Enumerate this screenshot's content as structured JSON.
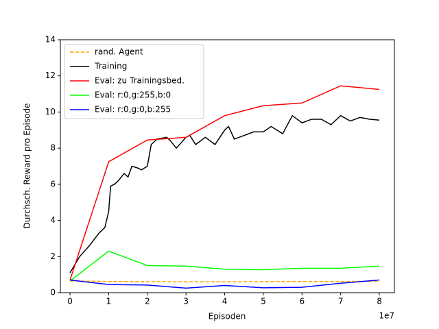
{
  "chart_data": {
    "type": "line",
    "xlabel": "Episoden",
    "ylabel": "Durchsch. Reward pro Episode",
    "x_offset_label": "1e7",
    "xlim": [
      -0.25,
      8.39
    ],
    "xticks": [
      0,
      1,
      2,
      3,
      4,
      5,
      6,
      7,
      8
    ],
    "ylim": [
      0,
      14
    ],
    "yticks": [
      0,
      2,
      4,
      6,
      8,
      10,
      12,
      14
    ],
    "legend": "upper left",
    "series": [
      {
        "name": "rand. Agent",
        "color": "#ffa500",
        "dashed": true,
        "x": [
          0,
          1,
          2,
          3,
          4,
          5,
          6,
          7,
          8
        ],
        "values": [
          0.65,
          0.62,
          0.61,
          0.6,
          0.6,
          0.61,
          0.62,
          0.62,
          0.63
        ]
      },
      {
        "name": "Training",
        "color": "#000000",
        "x": [
          0,
          0.25,
          0.5,
          0.75,
          0.9,
          1.0,
          1.05,
          1.15,
          1.25,
          1.4,
          1.5,
          1.6,
          1.75,
          1.85,
          2.0,
          2.1,
          2.25,
          2.5,
          2.6,
          2.75,
          3.0,
          3.1,
          3.25,
          3.5,
          3.75,
          4.0,
          4.1,
          4.25,
          4.5,
          4.75,
          5.0,
          5.2,
          5.5,
          5.75,
          6.0,
          6.25,
          6.5,
          6.75,
          7.0,
          7.25,
          7.5,
          7.75,
          8.0
        ],
        "values": [
          1.1,
          2.0,
          2.6,
          3.3,
          3.6,
          4.5,
          5.9,
          6.0,
          6.2,
          6.6,
          6.4,
          7.0,
          6.9,
          6.8,
          7.0,
          8.2,
          8.5,
          8.6,
          8.4,
          8.0,
          8.6,
          8.7,
          8.2,
          8.6,
          8.2,
          9.0,
          9.2,
          8.5,
          8.7,
          8.9,
          8.9,
          9.2,
          8.8,
          9.8,
          9.4,
          9.6,
          9.6,
          9.3,
          9.8,
          9.5,
          9.7,
          9.6,
          9.55
        ]
      },
      {
        "name": "Eval: zu Trainingsbed.",
        "color": "#ff0000",
        "x": [
          0,
          1,
          2,
          3,
          4,
          5,
          6,
          7,
          8
        ],
        "values": [
          0.7,
          7.25,
          8.45,
          8.6,
          9.8,
          10.35,
          10.5,
          11.45,
          11.25
        ]
      },
      {
        "name": "Eval: r:0,g:255,b:0",
        "color": "#00ff00",
        "x": [
          0,
          1,
          2,
          3,
          4,
          5,
          6,
          7,
          8
        ],
        "values": [
          0.65,
          2.3,
          1.5,
          1.47,
          1.3,
          1.27,
          1.35,
          1.35,
          1.47
        ]
      },
      {
        "name": "Eval: r:0,g:0,b:255",
        "color": "#0000ff",
        "x": [
          0,
          1,
          2,
          3,
          4,
          5,
          6,
          7,
          8
        ],
        "values": [
          0.7,
          0.45,
          0.42,
          0.25,
          0.4,
          0.27,
          0.3,
          0.52,
          0.7
        ]
      }
    ]
  }
}
